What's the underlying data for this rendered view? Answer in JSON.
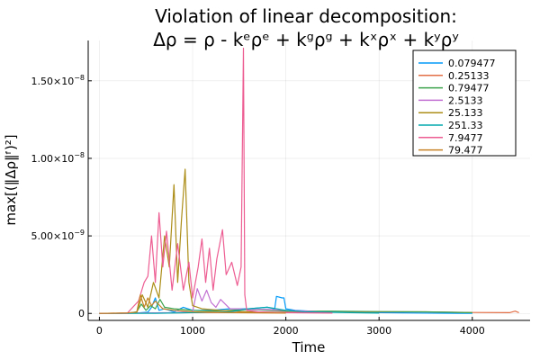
{
  "chart_data": {
    "type": "line",
    "title_line1": "Violation of linear decomposition:",
    "title_line2": "Δρ = ρ - kᵉρᵉ + kᵍρᵍ + kˣρˣ + kʸρʸ",
    "xlabel": "Time",
    "ylabel": "max[(‖Δρ‖ᶠ)²]",
    "xlim": [
      -120,
      4620
    ],
    "ylim": [
      -4.5e-10,
      1.76e-08
    ],
    "x_ticks": [
      {
        "value": 0,
        "label": "0"
      },
      {
        "value": 1000,
        "label": "1000"
      },
      {
        "value": 2000,
        "label": "2000"
      },
      {
        "value": 3000,
        "label": "3000"
      },
      {
        "value": 4000,
        "label": "4000"
      }
    ],
    "y_ticks": [
      {
        "value": 0,
        "mantissa": "0",
        "exp": ""
      },
      {
        "value": 5e-09,
        "mantissa": "5.00×10",
        "exp": "−9"
      },
      {
        "value": 1e-08,
        "mantissa": "1.00×10",
        "exp": "−8"
      },
      {
        "value": 1.5e-08,
        "mantissa": "1.50×10",
        "exp": "−8"
      }
    ],
    "grid": true,
    "legend_position": "top-right",
    "series": [
      {
        "name": "0.079477",
        "color": "#009af9",
        "x": [
          0,
          200,
          400,
          520,
          560,
          600,
          640,
          700,
          800,
          900,
          1000,
          1200,
          1400,
          1600,
          1800,
          1880,
          1900,
          1960,
          1980,
          2000,
          2100,
          2400,
          3000,
          3500,
          4000
        ],
        "y": [
          0,
          5e-12,
          2e-11,
          8e-11,
          4e-10,
          1e-09,
          2e-10,
          3e-10,
          1e-10,
          4e-10,
          2e-10,
          2e-10,
          3e-10,
          3e-10,
          4e-10,
          3e-10,
          1.1e-09,
          1e-09,
          1e-09,
          3e-10,
          2e-10,
          1e-10,
          5e-11,
          2e-11,
          0
        ]
      },
      {
        "name": "0.25133",
        "color": "#e26f46",
        "x": [
          0,
          500,
          1000,
          1500,
          2000,
          2500,
          3000,
          3500,
          4000,
          4400,
          4460,
          4500
        ],
        "y": [
          0,
          2e-11,
          5e-11,
          6e-11,
          8e-11,
          8e-11,
          1e-10,
          1e-10,
          6e-11,
          5e-11,
          1.5e-10,
          5e-11
        ]
      },
      {
        "name": "0.79477",
        "color": "#3da44d",
        "x": [
          0,
          300,
          400,
          450,
          500,
          550,
          600,
          650,
          700,
          800,
          900,
          1000,
          1200,
          1400,
          1600,
          1800,
          2000,
          2200,
          2500,
          3000,
          3500,
          4000
        ],
        "y": [
          0,
          1e-11,
          1e-10,
          6e-10,
          2e-10,
          5e-10,
          3e-10,
          9e-10,
          4e-10,
          3e-10,
          2.5e-10,
          2e-10,
          1.5e-10,
          2e-10,
          2.5e-10,
          2e-10,
          1.5e-10,
          1.5e-10,
          1.5e-10,
          1.2e-10,
          1e-10,
          5e-11
        ]
      },
      {
        "name": "2.5133",
        "color": "#c271d2",
        "x": [
          0,
          400,
          800,
          1000,
          1050,
          1100,
          1150,
          1200,
          1250,
          1300,
          1400,
          1500,
          1600,
          1800,
          2000,
          2200,
          2500
        ],
        "y": [
          0,
          2e-11,
          5e-11,
          1e-10,
          1.6e-09,
          8e-10,
          1.5e-09,
          7e-10,
          4e-10,
          9e-10,
          3e-10,
          3e-10,
          2.5e-10,
          2.5e-10,
          2e-10,
          1.5e-10,
          5e-11
        ]
      },
      {
        "name": "25.133",
        "color": "#ac8d18",
        "x": [
          0,
          300,
          400,
          460,
          520,
          580,
          640,
          700,
          750,
          800,
          840,
          880,
          920,
          960,
          1000,
          1100,
          1300,
          1600,
          2000
        ],
        "y": [
          0,
          2e-11,
          5e-11,
          1.2e-09,
          4e-10,
          2e-09,
          1e-09,
          5e-09,
          3e-09,
          8.3e-09,
          2e-09,
          6e-09,
          9.3e-09,
          2e-09,
          5e-10,
          3e-10,
          2e-10,
          1e-10,
          5e-11
        ]
      },
      {
        "name": "251.33",
        "color": "#00a9ad",
        "x": [
          0,
          200,
          600,
          1000,
          1400,
          1600,
          1800,
          2000,
          2200,
          3000
        ],
        "y": [
          0,
          5e-12,
          1e-11,
          5e-11,
          1e-10,
          3e-10,
          4e-10,
          2e-10,
          1e-10,
          2e-11
        ]
      },
      {
        "name": "7.9477",
        "color": "#ed5d92",
        "x": [
          0,
          300,
          420,
          480,
          520,
          560,
          600,
          640,
          680,
          720,
          780,
          840,
          900,
          960,
          1000,
          1060,
          1100,
          1140,
          1180,
          1220,
          1260,
          1320,
          1360,
          1420,
          1480,
          1520,
          1545,
          1560,
          1580,
          1700,
          2000,
          2500
        ],
        "y": [
          0,
          2e-11,
          8e-10,
          2e-09,
          2.4e-09,
          5e-09,
          2e-09,
          6.5e-09,
          3e-09,
          5.3e-09,
          1.5e-09,
          4.5e-09,
          1.5e-09,
          3.3e-09,
          1e-09,
          3e-09,
          4.8e-09,
          2e-09,
          4.2e-09,
          1.5e-09,
          3.5e-09,
          5.4e-09,
          2.5e-09,
          3.3e-09,
          1.8e-09,
          3e-09,
          1.71e-08,
          1.2e-09,
          2e-10,
          1e-10,
          5e-11,
          2e-11
        ]
      },
      {
        "name": "79.477",
        "color": "#c68225",
        "x": [
          0,
          300,
          400,
          440,
          480,
          520,
          560,
          600,
          680,
          800,
          1000,
          1400,
          2000
        ],
        "y": [
          0,
          3e-11,
          8e-11,
          1.2e-09,
          4e-10,
          1e-09,
          5e-10,
          8e-10,
          3e-10,
          2e-10,
          1e-10,
          5e-11,
          2e-11
        ]
      }
    ]
  }
}
